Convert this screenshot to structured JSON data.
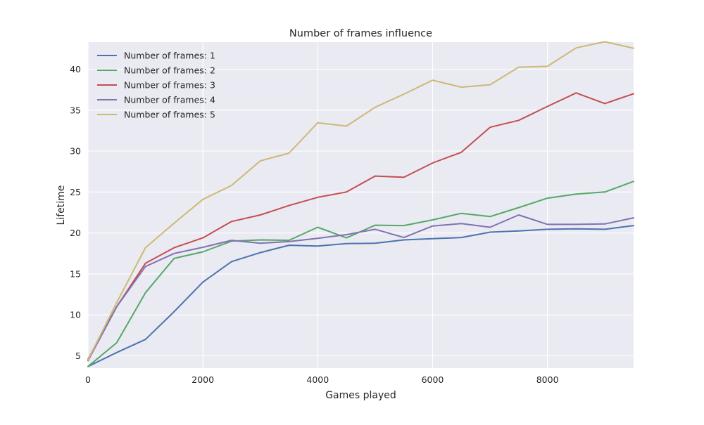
{
  "chart_data": {
    "type": "line",
    "title": "Number of frames influence",
    "xlabel": "Games played",
    "ylabel": "Lifetime",
    "xlim": [
      0,
      9500
    ],
    "ylim": [
      3.5,
      43.3
    ],
    "xticks": [
      0,
      2000,
      4000,
      6000,
      8000
    ],
    "yticks": [
      5,
      10,
      15,
      20,
      25,
      30,
      35,
      40
    ],
    "grid": true,
    "legend_position": "top-left",
    "x": [
      0,
      500,
      1000,
      1500,
      2000,
      2500,
      3000,
      3500,
      4000,
      4500,
      5000,
      5500,
      6000,
      6500,
      7000,
      7500,
      8000,
      8500,
      9000,
      9500
    ],
    "series": [
      {
        "name": "Number of frames: 1",
        "color": "#4c72b0",
        "values": [
          3.7,
          5.4,
          7.0,
          10.4,
          14.0,
          16.5,
          17.6,
          18.5,
          18.4,
          18.7,
          18.75,
          19.15,
          19.3,
          19.45,
          20.1,
          20.25,
          20.45,
          20.5,
          20.45,
          20.9
        ]
      },
      {
        "name": "Number of frames: 2",
        "color": "#55a868",
        "values": [
          3.7,
          6.6,
          12.7,
          16.9,
          17.7,
          19.0,
          19.15,
          19.1,
          20.7,
          19.4,
          20.95,
          20.9,
          21.6,
          22.4,
          22.0,
          23.1,
          24.25,
          24.75,
          25.0,
          26.3
        ]
      },
      {
        "name": "Number of frames: 3",
        "color": "#c44e52",
        "values": [
          4.6,
          11.0,
          16.3,
          18.2,
          19.4,
          21.4,
          22.2,
          23.35,
          24.35,
          25.0,
          26.95,
          26.8,
          28.55,
          29.85,
          32.9,
          33.75,
          35.45,
          37.1,
          35.8,
          37.0
        ]
      },
      {
        "name": "Number of frames: 4",
        "color": "#8172b2",
        "values": [
          4.4,
          11.0,
          15.9,
          17.5,
          18.25,
          19.1,
          18.75,
          18.95,
          19.35,
          19.8,
          20.45,
          19.45,
          20.85,
          21.15,
          20.7,
          22.2,
          21.05,
          21.05,
          21.1,
          21.85
        ]
      },
      {
        "name": "Number of frames: 5",
        "color": "#ccb974",
        "values": [
          4.5,
          11.5,
          18.2,
          21.2,
          24.1,
          25.8,
          28.8,
          29.75,
          33.45,
          33.05,
          35.35,
          36.95,
          38.65,
          37.8,
          38.1,
          40.25,
          40.35,
          42.6,
          43.35,
          42.55
        ]
      }
    ]
  },
  "colors": {
    "plot_background": "#eaeaf2",
    "grid": "#ffffff",
    "figure_background": "#ffffff"
  }
}
